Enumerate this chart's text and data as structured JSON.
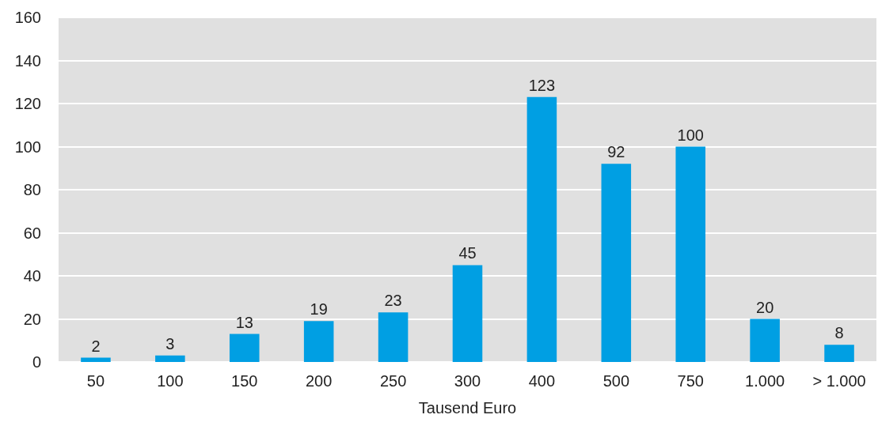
{
  "chart_data": {
    "type": "bar",
    "xlabel": "Tausend Euro",
    "categories": [
      "50",
      "100",
      "150",
      "200",
      "250",
      "300",
      "400",
      "500",
      "750",
      "1.000",
      "> 1.000"
    ],
    "values": [
      2,
      3,
      13,
      19,
      23,
      45,
      123,
      92,
      100,
      20,
      8
    ],
    "color": "#009fe3",
    "ylim": [
      0,
      160
    ],
    "yticks": [
      0,
      20,
      40,
      60,
      80,
      100,
      120,
      140,
      160
    ],
    "grid": "y",
    "data_labels": true
  }
}
